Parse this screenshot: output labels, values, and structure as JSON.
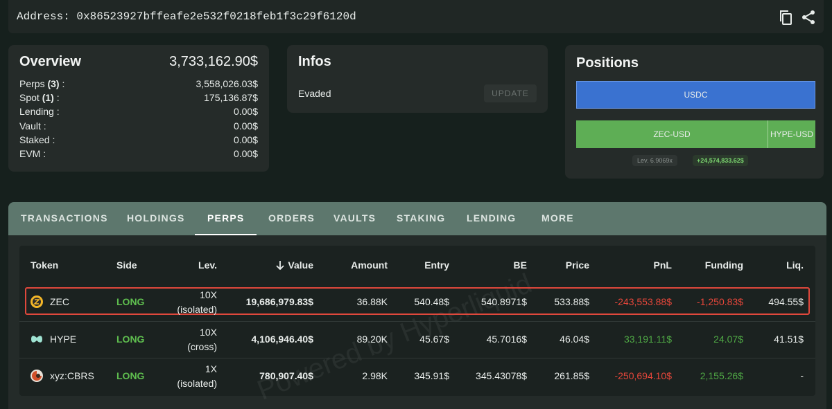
{
  "header": {
    "address_label": "Address:",
    "address": "0x86523927bffeafe2e532f0218feb1f3c29f6120d"
  },
  "overview": {
    "title": "Overview",
    "total": "3,733,162.90$",
    "separator": ":",
    "rows": [
      {
        "label": "Perps",
        "count": "(3)",
        "value": "3,558,026.03$"
      },
      {
        "label": "Spot",
        "count": "(1)",
        "value": "175,136.87$"
      },
      {
        "label": "Lending",
        "value": "0.00$"
      },
      {
        "label": "Vault",
        "value": "0.00$"
      },
      {
        "label": "Staked",
        "value": "0.00$"
      },
      {
        "label": "EVM",
        "value": "0.00$"
      }
    ]
  },
  "infos": {
    "title": "Infos",
    "status": "Evaded",
    "button": "UPDATE"
  },
  "positions": {
    "title": "Positions",
    "stable": "USDC",
    "perps": [
      "ZEC-USD",
      "HYPE-USD"
    ],
    "leverage_label": "Lev.",
    "leverage": "6.9069x",
    "pnl": "+24,574,833.62$"
  },
  "tabs": [
    "TRANSACTIONS",
    "HOLDINGS",
    "PERPS",
    "ORDERS",
    "VAULTS",
    "STAKING",
    "LENDING",
    "MORE"
  ],
  "active_tab": 2,
  "table": {
    "columns": [
      "Token",
      "Side",
      "Lev.",
      "Value",
      "Amount",
      "Entry",
      "BE",
      "Price",
      "PnL",
      "Funding",
      "Liq."
    ],
    "sort_column": 3,
    "highlighted_row": 0,
    "watermark": "Powered by Hyperliquid",
    "rows": [
      {
        "token": "ZEC",
        "side": "LONG",
        "leverage": "10X",
        "margin": "(isolated)",
        "value": "19,686,979.83$",
        "amount": "36.88K",
        "entry": "540.48$",
        "be": "540.8971$",
        "price": "533.88$",
        "pnl": "-243,553.88$",
        "funding": "-1,250.83$",
        "liq": "494.55$"
      },
      {
        "token": "HYPE",
        "side": "LONG",
        "leverage": "10X",
        "margin": "(cross)",
        "value": "4,106,946.40$",
        "amount": "89.20K",
        "entry": "45.67$",
        "be": "45.7016$",
        "price": "46.04$",
        "pnl": "33,191.11$",
        "funding": "24.07$",
        "liq": "41.51$"
      },
      {
        "token": "xyz:CBRS",
        "side": "LONG",
        "leverage": "1X",
        "margin": "(isolated)",
        "value": "780,907.40$",
        "amount": "2.98K",
        "entry": "345.91$",
        "be": "345.43078$",
        "price": "261.85$",
        "pnl": "-250,694.10$",
        "funding": "2,155.26$",
        "liq": "-"
      }
    ]
  }
}
